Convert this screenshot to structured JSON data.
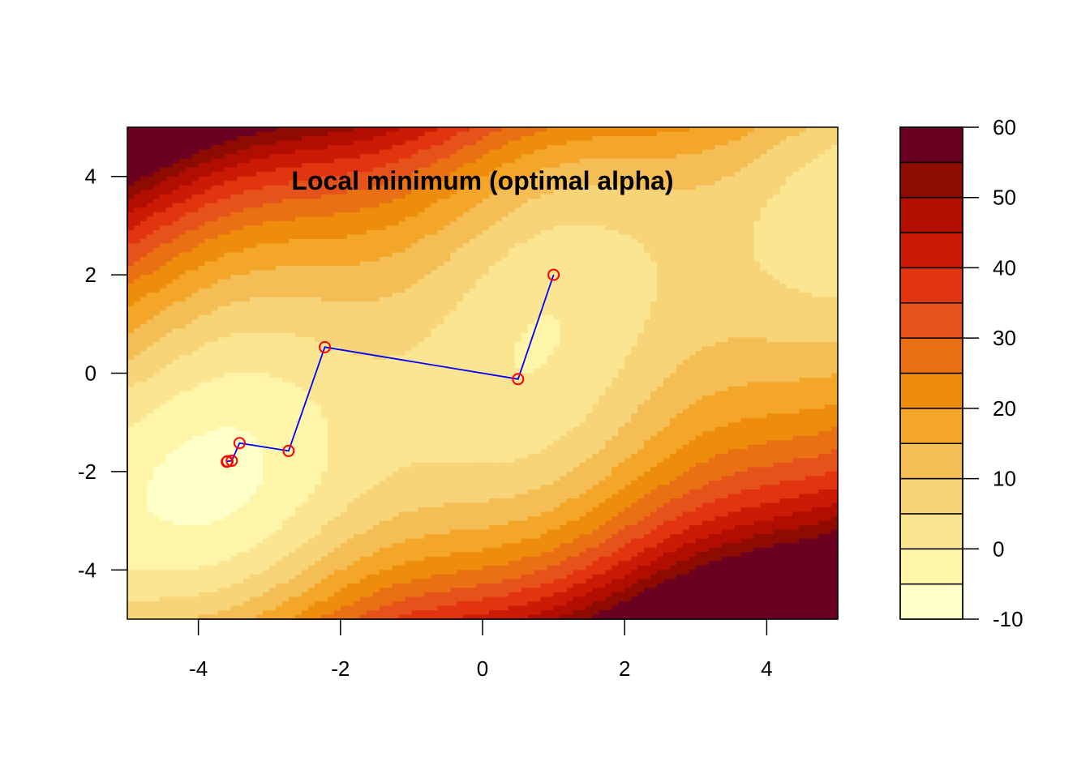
{
  "chart_data": {
    "type": "filled-contour",
    "annotation": "Local minimum (optimal alpha)",
    "xlim": [
      -5,
      5
    ],
    "ylim": [
      -5,
      5
    ],
    "x_ticks": [
      -4,
      -2,
      0,
      2,
      4
    ],
    "y_ticks": [
      -4,
      -2,
      0,
      2,
      4
    ],
    "x_tick_labels": [
      "-4",
      "-2",
      "0",
      "2",
      "4"
    ],
    "y_tick_labels": [
      "-4",
      "-2",
      "0",
      "2",
      "4"
    ],
    "levels": [
      -10,
      -5,
      0,
      5,
      10,
      15,
      20,
      25,
      30,
      35,
      40,
      45,
      50,
      55,
      60
    ],
    "legend_tick_values": [
      -10,
      0,
      10,
      20,
      30,
      40,
      50,
      60
    ],
    "legend_tick_labels": [
      "-10",
      "0",
      "10",
      "20",
      "30",
      "40",
      "50",
      "60"
    ],
    "legend_position": "right",
    "level_colors": [
      "#FFFFC8",
      "#FFF5A8",
      "#FBE590",
      "#F8D478",
      "#F5BE55",
      "#F3A628",
      "#EE8C0C",
      "#E97113",
      "#E6531A",
      "#E2340F",
      "#CC1A05",
      "#B10D00",
      "#8E0B00",
      "#6B0020"
    ],
    "path": {
      "x": [
        1.0,
        0.5,
        -2.22,
        -2.73,
        -3.42,
        -3.53,
        -3.59,
        -3.6
      ],
      "y": [
        2.0,
        -0.12,
        0.53,
        -1.58,
        -1.42,
        -1.78,
        -1.79,
        -1.8
      ],
      "line_color": "#0000FF",
      "point_color": "#FF0000"
    }
  }
}
